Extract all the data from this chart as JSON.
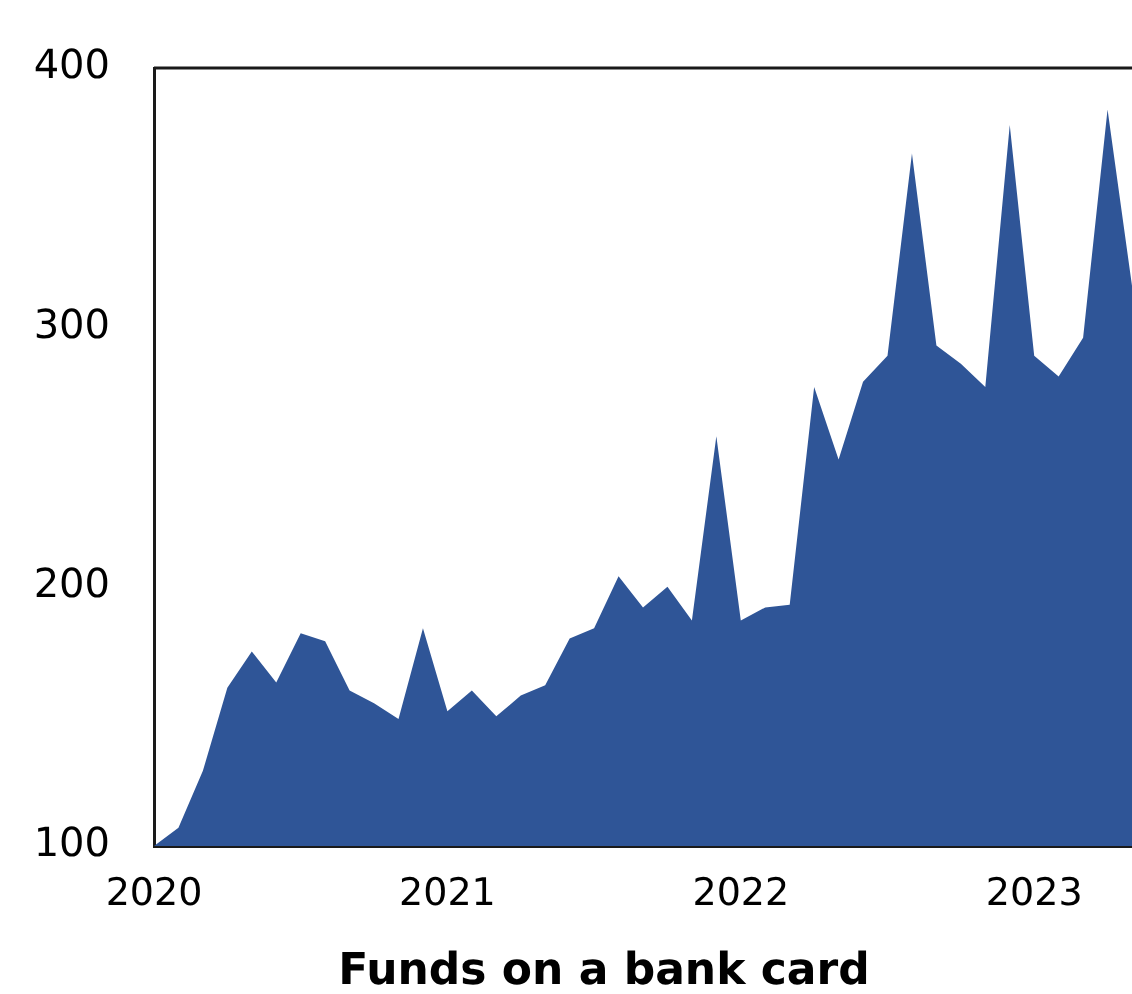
{
  "chart_data": {
    "type": "area",
    "xlabel": "Funds on a bank card",
    "x": [
      "2020-01",
      "2020-02",
      "2020-03",
      "2020-04",
      "2020-05",
      "2020-06",
      "2020-07",
      "2020-08",
      "2020-09",
      "2020-10",
      "2020-11",
      "2020-12",
      "2021-01",
      "2021-02",
      "2021-03",
      "2021-04",
      "2021-05",
      "2021-06",
      "2021-07",
      "2021-08",
      "2021-09",
      "2021-10",
      "2021-11",
      "2021-12",
      "2022-01",
      "2022-02",
      "2022-03",
      "2022-04",
      "2022-05",
      "2022-06",
      "2022-07",
      "2022-08",
      "2022-09",
      "2022-10",
      "2022-11",
      "2022-12",
      "2023-01",
      "2023-02",
      "2023-03",
      "2023-04",
      "2023-05"
    ],
    "values": [
      100,
      107,
      129,
      161,
      175,
      163,
      182,
      179,
      160,
      155,
      149,
      184,
      152,
      160,
      150,
      158,
      162,
      180,
      184,
      204,
      192,
      200,
      187,
      258,
      187,
      192,
      193,
      277,
      249,
      279,
      289,
      367,
      293,
      286,
      277,
      378,
      289,
      281,
      296,
      384,
      316
    ],
    "color": "#2f5597",
    "xlim": [
      "2020-01",
      "2023-05"
    ],
    "xticks": [
      "2020",
      "2021",
      "2022",
      "2023"
    ],
    "ylim": [
      100,
      400
    ],
    "yticks": [
      100,
      200,
      300,
      400
    ]
  }
}
